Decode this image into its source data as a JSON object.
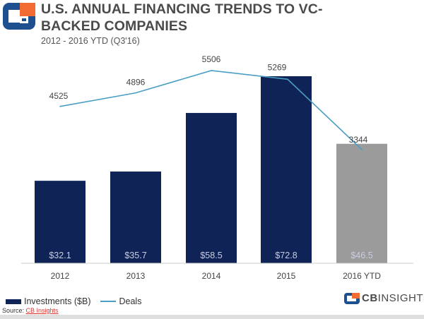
{
  "header": {
    "title": "U.S. ANNUAL FINANCING TRENDS TO VC-BACKED COMPANIES",
    "subtitle": "2012 - 2016 YTD (Q3'16)"
  },
  "chart_data": {
    "type": "bar",
    "categories": [
      "2012",
      "2013",
      "2014",
      "2015",
      "2016 YTD"
    ],
    "series": [
      {
        "name": "Investments ($B)",
        "type": "bar",
        "values": [
          32.1,
          35.7,
          58.5,
          72.8,
          46.5
        ],
        "labels": [
          "$32.1",
          "$35.7",
          "$58.5",
          "$72.8",
          "$46.5"
        ],
        "colors": [
          "#0f2356",
          "#0f2356",
          "#0f2356",
          "#0f2356",
          "#9b9b9b"
        ]
      },
      {
        "name": "Deals",
        "type": "line",
        "values": [
          4525,
          4896,
          5506,
          5269,
          3344
        ],
        "labels": [
          "4525",
          "4896",
          "5506",
          "5269",
          "3344"
        ],
        "color": "#4a9ec4"
      }
    ],
    "legend": "bottom-left",
    "grid": false
  },
  "footer": {
    "source_prefix": "Source: ",
    "source_link": "CB Insights",
    "brand_cb": "CB",
    "brand_rest": "INSIGHTS"
  },
  "colors": {
    "navy": "#0f2356",
    "gray": "#9b9b9b",
    "line": "#4a9ec4",
    "logo_orange": "#f26b33",
    "logo_blue": "#1e4f8f"
  }
}
